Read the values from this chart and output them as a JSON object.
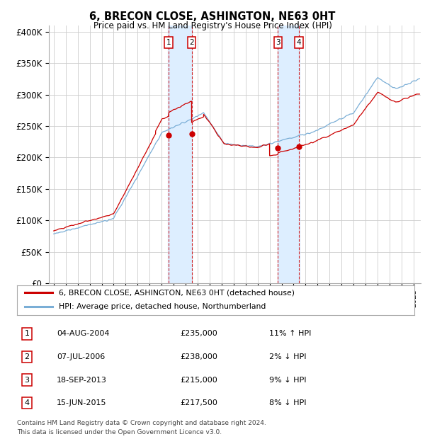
{
  "title": "6, BRECON CLOSE, ASHINGTON, NE63 0HT",
  "subtitle": "Price paid vs. HM Land Registry's House Price Index (HPI)",
  "y_ticks": [
    0,
    50000,
    100000,
    150000,
    200000,
    250000,
    300000,
    350000,
    400000
  ],
  "y_labels": [
    "£0",
    "£50K",
    "£100K",
    "£150K",
    "£200K",
    "£250K",
    "£300K",
    "£350K",
    "£400K"
  ],
  "sales": [
    {
      "label": "1",
      "date": "04-AUG-2004",
      "price": "£235,000",
      "relation": "11% ↑ HPI",
      "year": 2004.58,
      "price_val": 235000
    },
    {
      "label": "2",
      "date": "07-JUL-2006",
      "price": "£238,000",
      "relation": "2% ↓ HPI",
      "year": 2006.5,
      "price_val": 238000
    },
    {
      "label": "3",
      "date": "18-SEP-2013",
      "price": "£215,000",
      "relation": "9% ↓ HPI",
      "year": 2013.7,
      "price_val": 215000
    },
    {
      "label": "4",
      "date": "15-JUN-2015",
      "price": "£217,500",
      "relation": "8% ↓ HPI",
      "year": 2015.45,
      "price_val": 217500
    }
  ],
  "legend_entries": [
    {
      "label": "6, BRECON CLOSE, ASHINGTON, NE63 0HT (detached house)",
      "color": "#cc0000"
    },
    {
      "label": "HPI: Average price, detached house, Northumberland",
      "color": "#7aaed6"
    }
  ],
  "footer1": "Contains HM Land Registry data © Crown copyright and database right 2024.",
  "footer2": "This data is licensed under the Open Government Licence v3.0.",
  "red": "#cc0000",
  "blue": "#7aaed6",
  "band_color": "#ddeeff",
  "grid_color": "#cccccc"
}
